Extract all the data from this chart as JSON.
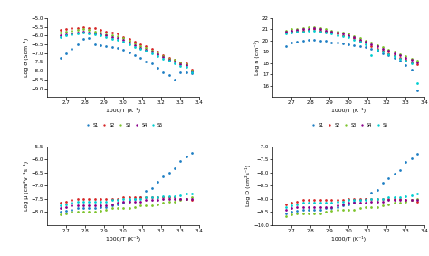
{
  "x_values": [
    2.67,
    2.7,
    2.73,
    2.76,
    2.79,
    2.82,
    2.85,
    2.88,
    2.91,
    2.94,
    2.97,
    3.0,
    3.03,
    3.06,
    3.09,
    3.12,
    3.15,
    3.18,
    3.21,
    3.24,
    3.27,
    3.3,
    3.33,
    3.36
  ],
  "colors": [
    "#1f7fc4",
    "#d62728",
    "#7dc42c",
    "#8B008B",
    "#00ced1"
  ],
  "legend_labels": [
    "S1",
    "S2",
    "S3",
    "S4",
    "S5"
  ],
  "xlim": [
    2.6,
    3.4
  ],
  "xlabel": "1000/T (K⁻¹)",
  "plot1": {
    "ylabel": "Log σ (Scm⁻¹)",
    "ylim": [
      -9.5,
      -5.0
    ],
    "yticks": [
      -9.0,
      -8.5,
      -8.0,
      -7.5,
      -7.0,
      -6.5,
      -6.0,
      -5.5,
      -5.0
    ],
    "data": [
      [
        -7.25,
        -7.0,
        -6.75,
        -6.5,
        -6.2,
        -6.15,
        -6.5,
        -6.55,
        -6.6,
        -6.65,
        -6.7,
        -6.8,
        -6.95,
        -7.1,
        -7.25,
        -7.5,
        -7.6,
        -7.85,
        -8.1,
        -8.25,
        -8.5,
        -8.1,
        -8.1,
        -8.15
      ],
      [
        -5.7,
        -5.65,
        -5.6,
        -5.55,
        -5.5,
        -5.55,
        -5.6,
        -5.7,
        -5.8,
        -5.85,
        -5.9,
        -6.1,
        -6.2,
        -6.35,
        -6.5,
        -6.6,
        -6.75,
        -6.9,
        -7.1,
        -7.25,
        -7.35,
        -7.55,
        -7.6,
        -7.95
      ],
      [
        -5.85,
        -5.8,
        -5.75,
        -5.7,
        -5.65,
        -5.7,
        -5.8,
        -5.85,
        -5.95,
        -6.0,
        -6.05,
        -6.15,
        -6.3,
        -6.45,
        -6.6,
        -6.7,
        -6.85,
        -7.0,
        -7.15,
        -7.3,
        -7.4,
        -7.6,
        -7.65,
        -8.0
      ],
      [
        -6.0,
        -5.95,
        -5.9,
        -5.85,
        -5.8,
        -5.85,
        -5.9,
        -5.95,
        -6.0,
        -6.1,
        -6.15,
        -6.25,
        -6.4,
        -6.55,
        -6.7,
        -6.8,
        -6.9,
        -7.05,
        -7.2,
        -7.35,
        -7.5,
        -7.65,
        -7.7,
        -8.05
      ],
      [
        -6.1,
        -6.0,
        -5.95,
        -5.9,
        -5.85,
        -5.9,
        -5.95,
        -6.0,
        -6.1,
        -6.2,
        -6.25,
        -6.35,
        -6.5,
        -6.65,
        -6.75,
        -6.85,
        -7.0,
        -7.15,
        -7.3,
        -7.45,
        -7.6,
        -7.75,
        -7.8,
        -8.1
      ]
    ]
  },
  "plot2": {
    "ylabel": "Log n (cm⁻³)",
    "ylim": [
      15.0,
      22.0
    ],
    "yticks": [
      16.0,
      17.0,
      18.0,
      19.0,
      20.0,
      21.0,
      22.0
    ],
    "data": [
      [
        19.5,
        19.8,
        19.9,
        20.0,
        20.05,
        20.1,
        20.0,
        19.95,
        19.85,
        19.8,
        19.75,
        19.7,
        19.6,
        19.5,
        19.4,
        19.3,
        19.1,
        18.9,
        18.7,
        18.5,
        18.2,
        17.8,
        17.4,
        15.6
      ],
      [
        20.7,
        20.8,
        20.85,
        20.9,
        20.95,
        21.0,
        20.9,
        20.8,
        20.7,
        20.6,
        20.5,
        20.4,
        20.2,
        20.0,
        19.8,
        19.5,
        19.3,
        19.1,
        18.9,
        18.7,
        18.5,
        18.3,
        18.1,
        17.9
      ],
      [
        20.9,
        21.0,
        21.05,
        21.1,
        21.15,
        21.2,
        21.1,
        21.0,
        20.9,
        20.8,
        20.7,
        20.6,
        20.4,
        20.2,
        20.0,
        19.8,
        19.6,
        19.4,
        19.2,
        19.0,
        18.8,
        18.6,
        18.4,
        18.2
      ],
      [
        20.8,
        20.9,
        20.95,
        21.0,
        21.05,
        21.1,
        21.0,
        20.9,
        20.8,
        20.7,
        20.6,
        20.5,
        20.3,
        20.1,
        19.9,
        19.7,
        19.5,
        19.3,
        19.1,
        18.9,
        18.7,
        18.5,
        18.3,
        18.1
      ],
      [
        20.6,
        20.7,
        20.75,
        20.8,
        20.85,
        20.9,
        20.8,
        20.7,
        20.6,
        20.5,
        20.4,
        20.3,
        20.1,
        19.9,
        19.7,
        18.7,
        19.2,
        19.0,
        18.8,
        18.6,
        18.4,
        18.2,
        18.0,
        16.2
      ]
    ]
  },
  "plot3": {
    "ylabel": "Log μ (cm²V⁻¹s⁻¹)",
    "ylim": [
      -8.5,
      -5.5
    ],
    "yticks": [
      -8.0,
      -7.5,
      -7.0,
      -6.5,
      -6.0,
      -5.5
    ],
    "data": [
      [
        -8.0,
        -7.95,
        -7.9,
        -7.85,
        -7.85,
        -7.85,
        -7.85,
        -7.8,
        -7.8,
        -7.75,
        -7.7,
        -7.65,
        -7.55,
        -7.5,
        -7.45,
        -7.2,
        -7.1,
        -6.85,
        -6.65,
        -6.5,
        -6.35,
        -6.05,
        -5.9,
        -5.75
      ],
      [
        -7.65,
        -7.6,
        -7.55,
        -7.5,
        -7.5,
        -7.5,
        -7.5,
        -7.5,
        -7.5,
        -7.5,
        -7.5,
        -7.45,
        -7.45,
        -7.45,
        -7.45,
        -7.45,
        -7.45,
        -7.45,
        -7.45,
        -7.45,
        -7.45,
        -7.5,
        -7.5,
        -7.55
      ],
      [
        -8.1,
        -8.05,
        -8.0,
        -8.0,
        -8.0,
        -8.0,
        -8.0,
        -7.95,
        -7.9,
        -7.85,
        -7.85,
        -7.85,
        -7.85,
        -7.8,
        -7.75,
        -7.75,
        -7.75,
        -7.7,
        -7.65,
        -7.6,
        -7.6,
        -7.55,
        -7.5,
        -7.45
      ],
      [
        -7.85,
        -7.8,
        -7.75,
        -7.75,
        -7.75,
        -7.75,
        -7.75,
        -7.75,
        -7.75,
        -7.7,
        -7.65,
        -7.6,
        -7.6,
        -7.6,
        -7.6,
        -7.55,
        -7.55,
        -7.55,
        -7.5,
        -7.5,
        -7.5,
        -7.5,
        -7.5,
        -7.5
      ],
      [
        -7.75,
        -7.7,
        -7.65,
        -7.6,
        -7.6,
        -7.6,
        -7.6,
        -7.6,
        -7.6,
        -7.55,
        -7.55,
        -7.5,
        -7.5,
        -7.5,
        -7.5,
        -7.45,
        -7.45,
        -7.45,
        -7.4,
        -7.4,
        -7.4,
        -7.35,
        -7.3,
        -7.3
      ]
    ]
  },
  "plot4": {
    "ylabel": "Log D (cm²s⁻¹)",
    "ylim": [
      -10.0,
      -7.0
    ],
    "yticks": [
      -10.0,
      -9.5,
      -9.0,
      -8.5,
      -8.0,
      -7.5,
      -7.0
    ],
    "data": [
      [
        -9.55,
        -9.5,
        -9.45,
        -9.4,
        -9.4,
        -9.4,
        -9.4,
        -9.35,
        -9.35,
        -9.3,
        -9.25,
        -9.2,
        -9.1,
        -9.05,
        -9.0,
        -8.75,
        -8.65,
        -8.4,
        -8.2,
        -8.05,
        -7.9,
        -7.6,
        -7.45,
        -7.3
      ],
      [
        -9.2,
        -9.15,
        -9.1,
        -9.05,
        -9.05,
        -9.05,
        -9.05,
        -9.05,
        -9.05,
        -9.05,
        -9.05,
        -9.0,
        -9.0,
        -9.0,
        -9.0,
        -9.0,
        -9.0,
        -9.0,
        -9.0,
        -9.0,
        -9.0,
        -9.05,
        -9.05,
        -9.1
      ],
      [
        -9.65,
        -9.6,
        -9.55,
        -9.55,
        -9.55,
        -9.55,
        -9.55,
        -9.5,
        -9.45,
        -9.4,
        -9.4,
        -9.4,
        -9.4,
        -9.35,
        -9.3,
        -9.3,
        -9.3,
        -9.25,
        -9.2,
        -9.15,
        -9.15,
        -9.1,
        -9.05,
        -9.0
      ],
      [
        -9.4,
        -9.35,
        -9.3,
        -9.3,
        -9.3,
        -9.3,
        -9.3,
        -9.3,
        -9.3,
        -9.25,
        -9.2,
        -9.15,
        -9.15,
        -9.15,
        -9.15,
        -9.1,
        -9.1,
        -9.1,
        -9.05,
        -9.05,
        -9.05,
        -9.05,
        -9.05,
        -9.05
      ],
      [
        -9.3,
        -9.25,
        -9.2,
        -9.15,
        -9.15,
        -9.15,
        -9.15,
        -9.15,
        -9.15,
        -9.1,
        -9.1,
        -9.05,
        -9.05,
        -9.05,
        -9.05,
        -9.0,
        -9.0,
        -9.0,
        -8.95,
        -8.95,
        -8.95,
        -8.9,
        -8.85,
        -8.8
      ]
    ]
  }
}
